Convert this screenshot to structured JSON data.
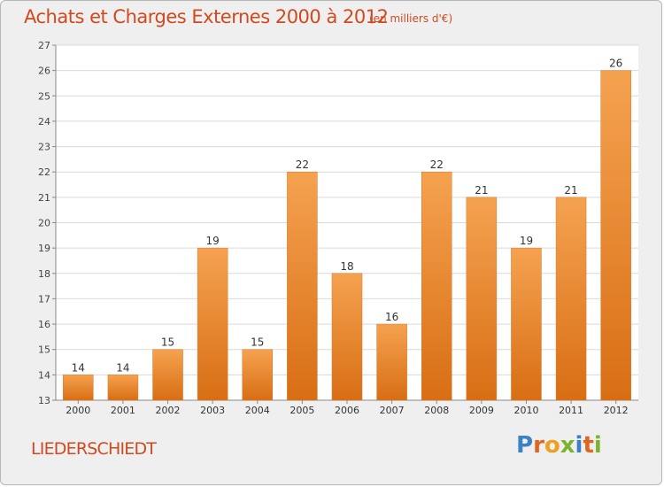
{
  "header": {
    "title": "Achats et Charges Externes 2000 à 2012",
    "subtitle": "(en milliers d'€)"
  },
  "footer": {
    "commune": "LIEDERSCHIEDT",
    "logo": [
      "P",
      "r",
      "o",
      "x",
      "i",
      "t",
      "i"
    ]
  },
  "colors": {
    "bar_top": "#f5a250",
    "bar_bottom": "#d86e14",
    "grid": "#d9d9d9",
    "text_accent": "#d14a1f",
    "logo": [
      "#3b82c4",
      "#e0661f",
      "#f0a020",
      "#7cb32e",
      "#3b82c4",
      "#e0661f",
      "#7cb32e"
    ]
  },
  "chart_data": {
    "type": "bar",
    "categories": [
      "2000",
      "2001",
      "2002",
      "2003",
      "2004",
      "2005",
      "2006",
      "2007",
      "2008",
      "2009",
      "2010",
      "2011",
      "2012"
    ],
    "values": [
      14,
      14,
      15,
      19,
      15,
      22,
      18,
      16,
      22,
      21,
      19,
      21,
      26
    ],
    "title": "Achats et Charges Externes 2000 à 2012",
    "subtitle": "(en milliers d'€)",
    "xlabel": "",
    "ylabel": "",
    "ylim": [
      13,
      27
    ],
    "yticks": [
      13,
      14,
      15,
      16,
      17,
      18,
      19,
      20,
      21,
      22,
      23,
      24,
      25,
      26,
      27
    ],
    "grid": true,
    "legend": "none"
  }
}
